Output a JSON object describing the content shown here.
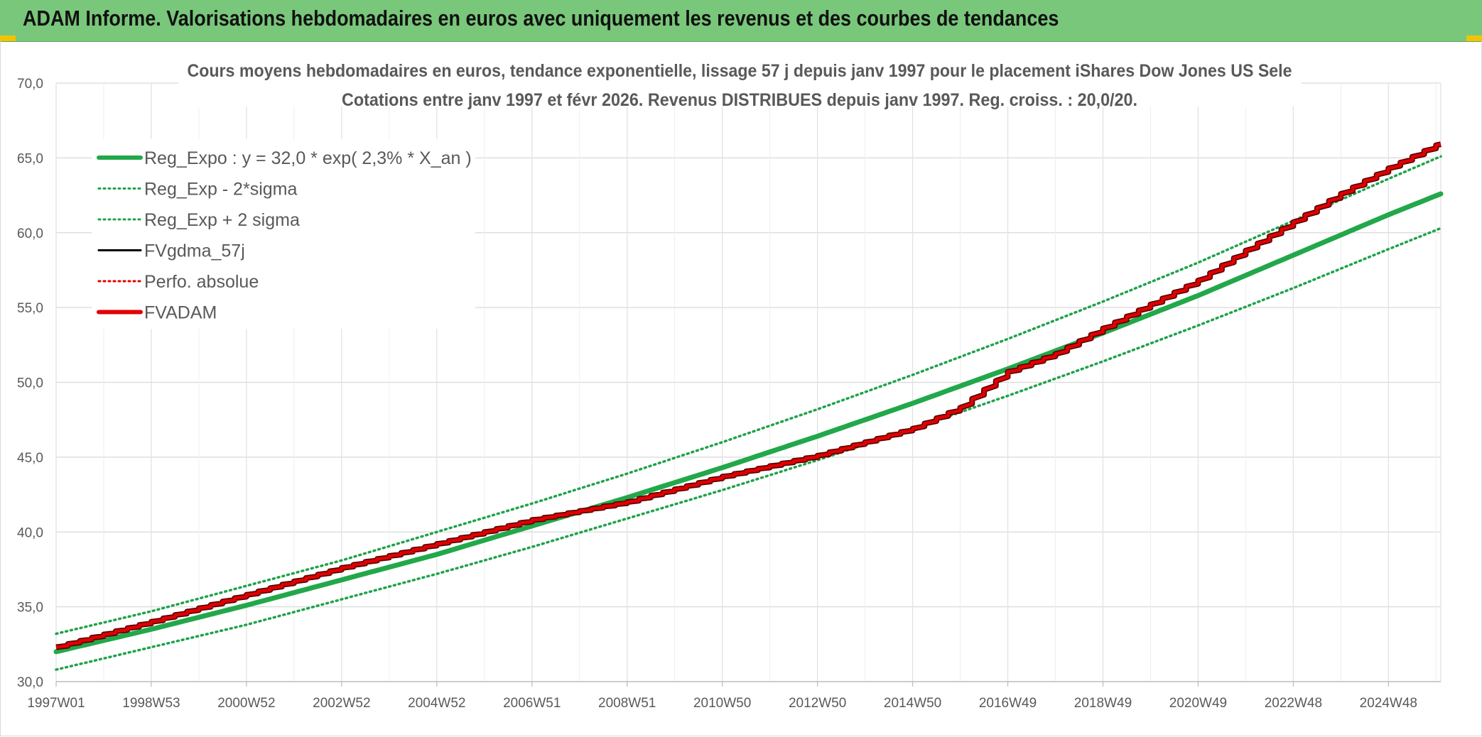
{
  "banner": {
    "title": "ADAM Informe. Valorisations hebdomadaires en euros avec uniquement les revenus et des courbes de tendances"
  },
  "colors": {
    "banner_bg": "#79c77a",
    "accent_corner": "#f2c300",
    "trend_green": "#22a84a",
    "band_green": "#1fa24a",
    "black_series": "#000000",
    "perf_red": "#e00000",
    "fvadam_red": "#e10000",
    "fvadam_shadow": "#5a0000"
  },
  "chart_data": {
    "type": "line",
    "title_line1": "Cours moyens hebdomadaires en euros, tendance exponentielle, lissage 57 j depuis janv 1997 pour le placement iShares Dow Jones US Sele",
    "title_line2": "Cotations entre janv 1997 et févr 2026. Revenus DISTRIBUES depuis janv 1997. Reg. croiss. : 20,0/20.",
    "xlabel": "",
    "ylabel": "",
    "x_range_years": [
      1997.0,
      2026.1
    ],
    "ylim": [
      30,
      70
    ],
    "y_ticks": [
      "30,0",
      "35,0",
      "40,0",
      "45,0",
      "50,0",
      "55,0",
      "60,0",
      "65,0",
      "70,0"
    ],
    "x_tick_labels": [
      "1997W01",
      "1998W53",
      "2000W52",
      "2002W52",
      "2004W52",
      "2006W51",
      "2008W51",
      "2010W50",
      "2012W50",
      "2014W50",
      "2016W49",
      "2018W49",
      "2020W49",
      "2022W48",
      "2024W48"
    ],
    "grid": true,
    "legend_position": "top-left",
    "legend": [
      {
        "label": "Reg_Expo : y = 32,0 * exp( 2,3% *  X_an )",
        "style": "solid-thick",
        "color": "#22a84a"
      },
      {
        "label": "Reg_Exp - 2*sigma",
        "style": "dotted",
        "color": "#1fa24a"
      },
      {
        "label": "Reg_Exp + 2 sigma",
        "style": "dotted",
        "color": "#1fa24a"
      },
      {
        "label": "FVgdma_57j",
        "style": "solid",
        "color": "#000000"
      },
      {
        "label": "Perfo. absolue",
        "style": "dotted",
        "color": "#e00000"
      },
      {
        "label": "FVADAM",
        "style": "solid-thick",
        "color": "#e10000"
      }
    ],
    "series": [
      {
        "name": "Reg_Expo : y = 32,0 * exp( 2,3% *  X_an )",
        "x": [
          1997,
          1999,
          2001,
          2003,
          2005,
          2007,
          2009,
          2011,
          2013,
          2015,
          2017,
          2019,
          2021,
          2023,
          2025,
          2026.1
        ],
        "values": [
          32.0,
          33.5,
          35.1,
          36.8,
          38.5,
          40.4,
          42.3,
          44.3,
          46.4,
          48.6,
          50.9,
          53.3,
          55.8,
          58.5,
          61.2,
          62.6
        ]
      },
      {
        "name": "Reg_Exp - 2*sigma",
        "x": [
          1997,
          1999,
          2001,
          2003,
          2005,
          2007,
          2009,
          2011,
          2013,
          2015,
          2017,
          2019,
          2021,
          2023,
          2025,
          2026.1
        ],
        "values": [
          30.8,
          32.3,
          33.8,
          35.5,
          37.2,
          39.0,
          40.9,
          42.8,
          44.8,
          46.9,
          49.1,
          51.4,
          53.8,
          56.3,
          58.9,
          60.3
        ]
      },
      {
        "name": "Reg_Exp + 2 sigma",
        "x": [
          1997,
          1999,
          2001,
          2003,
          2005,
          2007,
          2009,
          2011,
          2013,
          2015,
          2017,
          2019,
          2021,
          2023,
          2025,
          2026.1
        ],
        "values": [
          33.2,
          34.7,
          36.4,
          38.1,
          40.0,
          41.9,
          43.9,
          46.0,
          48.2,
          50.5,
          52.9,
          55.4,
          58.0,
          60.8,
          63.6,
          65.1
        ]
      },
      {
        "name": "FVADAM",
        "x": [
          1997,
          1999,
          2001,
          2003,
          2005,
          2007,
          2009,
          2011,
          2013,
          2015,
          2016,
          2017,
          2018,
          2019,
          2020,
          2021,
          2022,
          2023,
          2024,
          2025,
          2026.1
        ],
        "values": [
          32.3,
          34.0,
          35.8,
          37.6,
          39.2,
          40.8,
          42.0,
          43.7,
          45.1,
          46.9,
          48.3,
          50.7,
          51.9,
          53.6,
          55.2,
          56.8,
          58.8,
          60.7,
          62.6,
          64.3,
          66.0
        ]
      }
    ]
  }
}
